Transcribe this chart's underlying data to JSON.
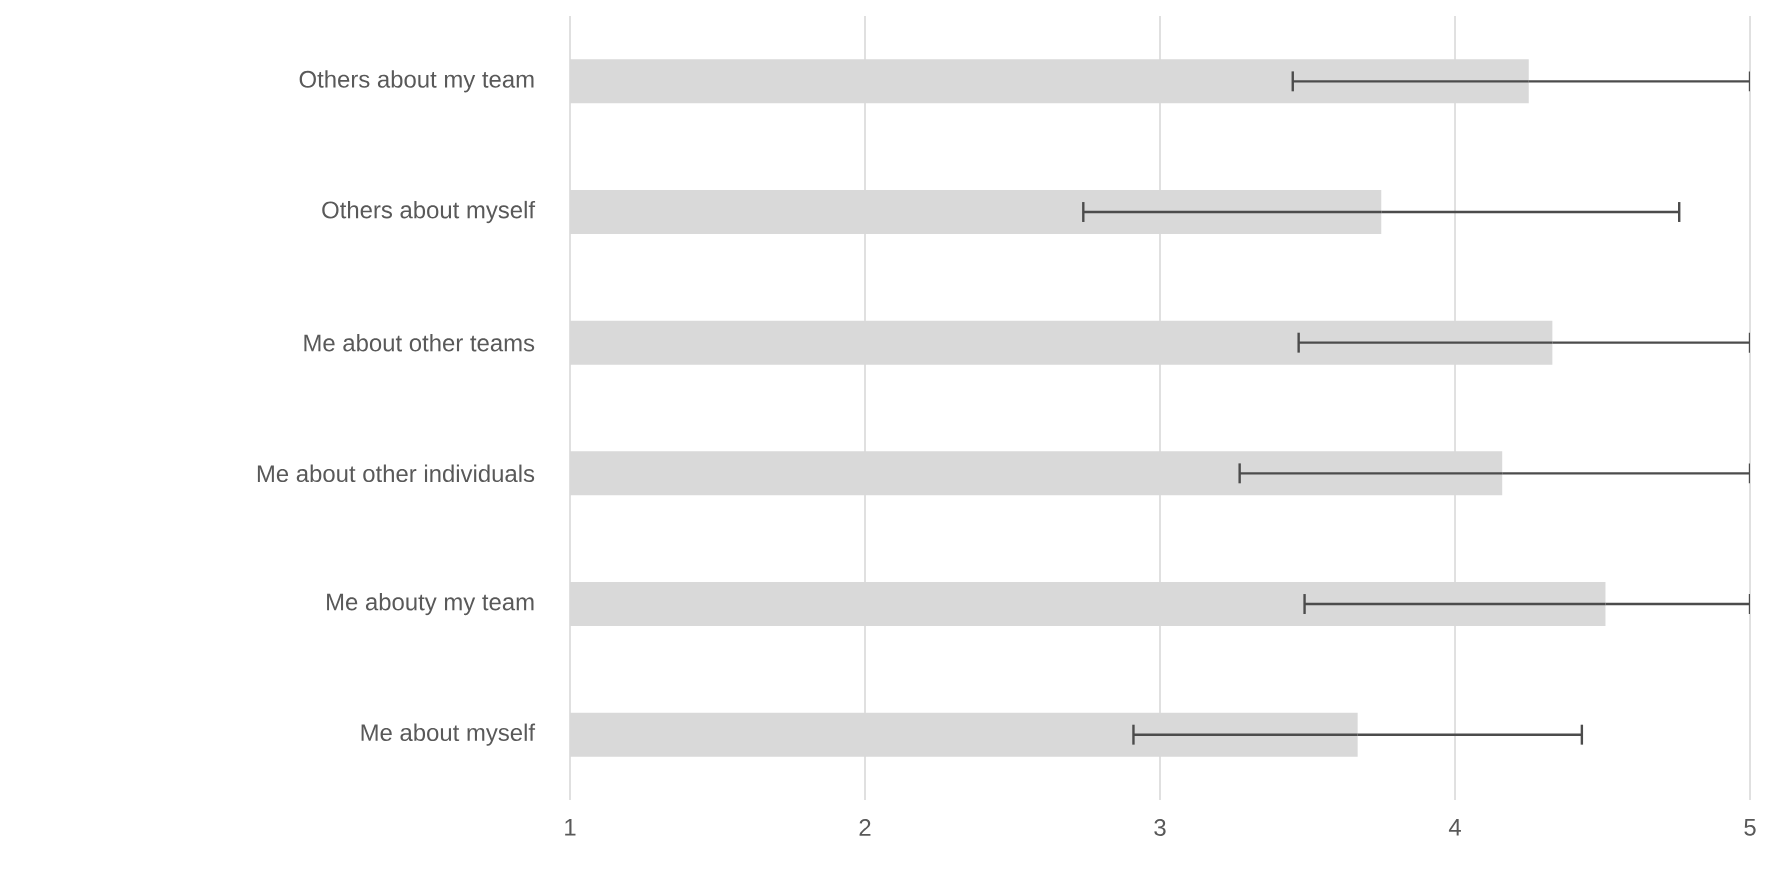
{
  "chart_data": {
    "type": "bar",
    "orientation": "horizontal",
    "categories": [
      "Others about my team",
      "Others about myself",
      "Me about other teams",
      "Me about other individuals",
      "Me abouty my team",
      "Me about myself"
    ],
    "values": [
      4.25,
      3.75,
      4.33,
      4.16,
      4.51,
      3.67
    ],
    "errors": [
      [
        3.45,
        5
      ],
      [
        2.74,
        4.76
      ],
      [
        3.47,
        5
      ],
      [
        3.27,
        5
      ],
      [
        3.49,
        5
      ],
      [
        2.91,
        4.43
      ]
    ],
    "color": "#d9d9d9",
    "xlim": [
      1,
      5
    ],
    "xticks": [
      1,
      2,
      3,
      4,
      5
    ],
    "grid": "x"
  }
}
